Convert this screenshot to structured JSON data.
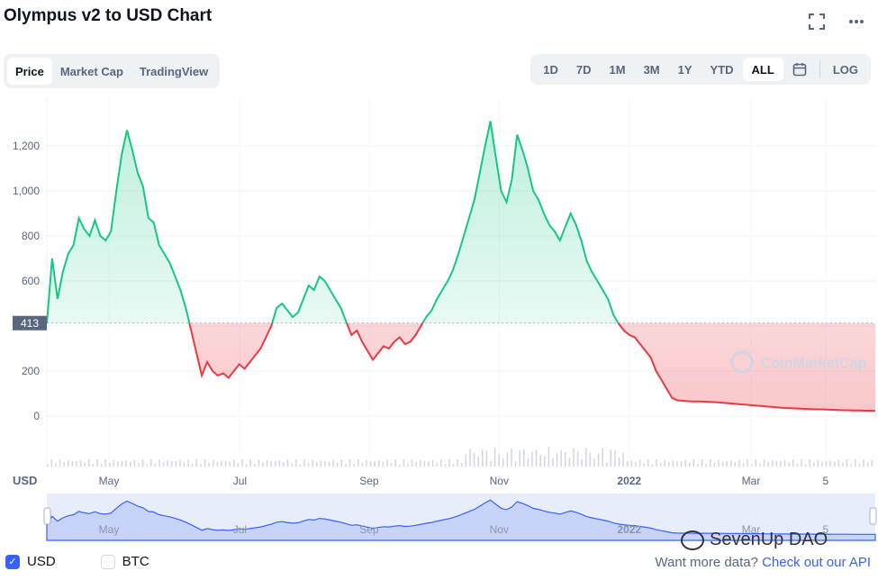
{
  "page": {
    "title": "Olympus v2 to USD Chart",
    "tabs": [
      {
        "label": "Price",
        "active": true
      },
      {
        "label": "Market Cap",
        "active": false
      },
      {
        "label": "TradingView",
        "active": false
      }
    ],
    "ranges": [
      {
        "label": "1D"
      },
      {
        "label": "7D"
      },
      {
        "label": "1M"
      },
      {
        "label": "3M"
      },
      {
        "label": "1Y"
      },
      {
        "label": "YTD"
      },
      {
        "label": "ALL",
        "active": true
      }
    ],
    "log_label": "LOG",
    "icons": {
      "fullscreen": "fullscreen-icon",
      "more": "more-icon",
      "calendar": "calendar-icon"
    },
    "legend": {
      "usd": "USD",
      "btc": "BTC",
      "usd_checked": true,
      "btc_checked": false
    },
    "api_text": "Want more data?",
    "api_link": "Check out our API",
    "watermark": "SevenUp DAO",
    "brand": "CoinMarketCap"
  },
  "chart_data": {
    "type": "area",
    "x_ticks": [
      "May",
      "Jul",
      "Sep",
      "Nov",
      "2022",
      "Mar",
      "5"
    ],
    "y_ticks": [
      0,
      200,
      400,
      600,
      800,
      1000,
      1200
    ],
    "y_tick_labels": [
      "0",
      "200",
      "",
      "600",
      "800",
      "1,000",
      "1,200"
    ],
    "ylim": [
      0,
      1300
    ],
    "y_unit_label": "USD",
    "baseline_value": 413,
    "baseline_label": "413",
    "colors": {
      "up": "#16c784",
      "down": "#ea3943",
      "navigator": "#3861fb"
    },
    "grid": true,
    "series": [
      {
        "values": [
          413,
          700,
          520,
          640,
          720,
          760,
          880,
          830,
          800,
          870,
          800,
          780,
          820,
          1000,
          1160,
          1270,
          1180,
          1080,
          1020,
          880,
          860,
          760,
          720,
          680,
          620,
          560,
          480,
          380,
          280,
          180,
          240,
          200,
          180,
          190,
          170,
          200,
          230,
          210,
          240,
          270,
          300,
          350,
          400,
          480,
          500,
          470,
          440,
          460,
          520,
          580,
          560,
          620,
          600,
          560,
          520,
          480,
          420,
          360,
          380,
          330,
          290,
          250,
          280,
          310,
          300,
          330,
          350,
          320,
          330,
          360,
          400,
          440,
          470,
          520,
          560,
          600,
          650,
          720,
          800,
          880,
          960,
          1080,
          1200,
          1310,
          1150,
          1000,
          950,
          1050,
          1250,
          1180,
          1100,
          1000,
          960,
          900,
          850,
          820,
          780,
          840,
          900,
          850,
          780,
          690,
          640,
          600,
          560,
          520,
          450,
          410,
          380,
          360,
          350,
          320,
          290,
          260,
          200,
          160,
          120,
          80,
          70,
          68,
          66,
          65,
          65,
          64,
          63,
          62,
          60,
          58,
          56,
          54,
          52,
          50,
          48,
          46,
          44,
          42,
          40,
          38,
          36,
          35,
          34,
          33,
          32,
          31,
          30,
          30,
          29,
          28,
          27,
          26,
          26,
          25,
          25,
          24,
          24,
          23
        ]
      }
    ]
  }
}
